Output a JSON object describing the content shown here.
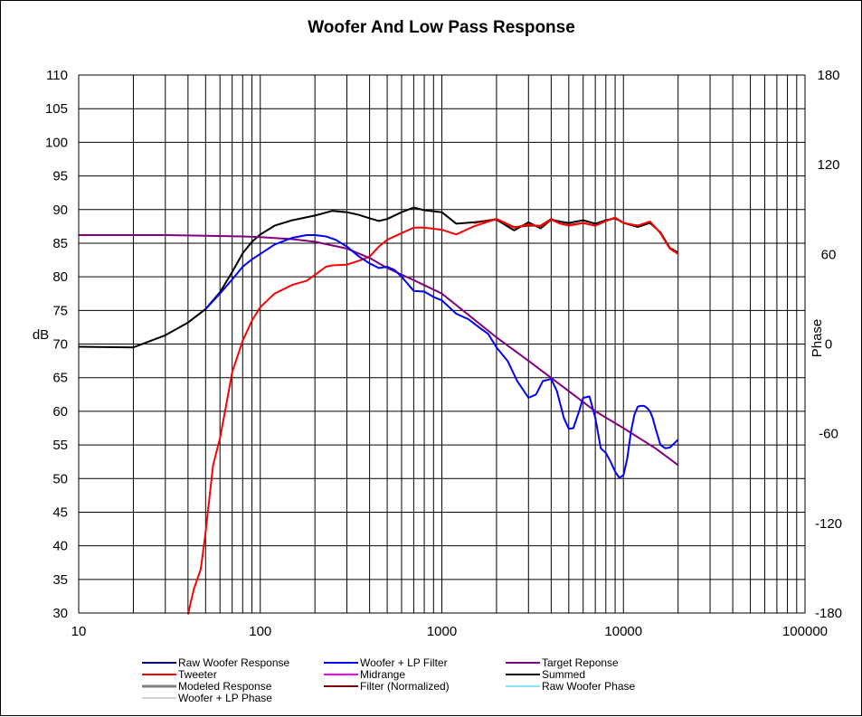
{
  "chart_data": {
    "type": "line",
    "title": "Woofer  And Low Pass Response",
    "xlabel": "",
    "ylabel": "dB",
    "y2label": "Phase",
    "xscale": "log",
    "xlim": [
      10,
      100000
    ],
    "ylim": [
      30,
      110
    ],
    "y2lim": [
      -180,
      180
    ],
    "grid": true,
    "legend_position": "bottom",
    "x_ticks": [
      "10",
      "100",
      "1000",
      "10000",
      "100000"
    ],
    "y_ticks": [
      "110",
      "105",
      "100",
      "95",
      "90",
      "85",
      "80",
      "75",
      "70",
      "65",
      "60",
      "55",
      "50",
      "45",
      "40",
      "35",
      "30"
    ],
    "y2_ticks": [
      "180",
      "120",
      "60",
      "0",
      "-60",
      "-120",
      "-180"
    ],
    "legend": [
      {
        "name": "Raw Woofer Response",
        "color": "#000080"
      },
      {
        "name": "Woofer + LP Filter",
        "color": "#0000ff"
      },
      {
        "name": "Target Reponse",
        "color": "#800080"
      },
      {
        "name": "Tweeter",
        "color": "#ff0000"
      },
      {
        "name": "Midrange",
        "color": "#ff00ff"
      },
      {
        "name": "Summed",
        "color": "#000000"
      },
      {
        "name": "Modeled Response",
        "color": "#808080"
      },
      {
        "name": "Filter (Normalized)",
        "color": "#800000"
      },
      {
        "name": "Raw Woofer Phase",
        "color": "#00ccff"
      },
      {
        "name": "Woofer + LP  Phase",
        "color": "#a0a0a0"
      }
    ],
    "series": [
      {
        "name": "Summed",
        "color": "#000000",
        "x": [
          10,
          20,
          30,
          40,
          50,
          60,
          70,
          80,
          90,
          100,
          120,
          150,
          200,
          250,
          300,
          350,
          400,
          450,
          500,
          600,
          700,
          800,
          1000,
          1200,
          1500,
          2000,
          2500,
          3000,
          3500,
          4000,
          4500,
          5000,
          6000,
          7000,
          8000,
          9000,
          10000,
          12000,
          14000,
          16000,
          18000,
          20000
        ],
        "y": [
          69.6,
          69.5,
          71.3,
          73.2,
          75.2,
          77.7,
          80.7,
          83.5,
          85.2,
          86.3,
          87.6,
          88.4,
          89.1,
          89.8,
          89.6,
          89.2,
          88.7,
          88.3,
          88.6,
          89.6,
          90.3,
          89.9,
          89.6,
          87.9,
          88.1,
          88.5,
          86.9,
          88.1,
          87.2,
          88.5,
          88.2,
          88.0,
          88.4,
          87.9,
          88.4,
          88.7,
          88.0,
          87.4,
          88.0,
          86.6,
          84.3,
          83.6
        ]
      },
      {
        "name": "Filter (Normalized)",
        "color": "#800000",
        "x": [
          1500,
          2000,
          2500,
          3000,
          3500,
          4000,
          4500,
          5000,
          6000,
          7000,
          8000,
          9000,
          10000,
          12000,
          14000,
          16000,
          18000,
          20000
        ],
        "y": [
          88.0,
          88.6,
          87.4,
          87.6,
          87.6,
          88.6,
          87.9,
          87.7,
          88.0,
          87.6,
          88.3,
          88.8,
          88.0,
          87.6,
          88.2,
          86.5,
          84.2,
          83.4
        ]
      },
      {
        "name": "Tweeter",
        "color": "#ff0000",
        "x": [
          40,
          43,
          47,
          50,
          55,
          60,
          65,
          70,
          80,
          90,
          100,
          120,
          150,
          180,
          200,
          230,
          250,
          300,
          350,
          400,
          450,
          500,
          600,
          700,
          800,
          1000,
          1200,
          1500,
          2000,
          2500,
          3000,
          3500,
          4000,
          4500,
          5000,
          6000,
          7000,
          8000,
          9000,
          10000,
          12000,
          14000,
          16000,
          18000,
          20000
        ],
        "y": [
          29.8,
          33.5,
          36.5,
          42.0,
          52.0,
          56.0,
          61.0,
          65.8,
          70.5,
          73.5,
          75.5,
          77.5,
          78.8,
          79.4,
          80.3,
          81.5,
          81.7,
          81.8,
          82.4,
          83.0,
          84.5,
          85.5,
          86.5,
          87.3,
          87.3,
          87.0,
          86.3,
          87.5,
          88.6,
          87.3,
          87.8,
          87.5,
          88.5,
          87.9,
          87.6,
          88.0,
          87.6,
          88.3,
          88.8,
          88.0,
          87.6,
          88.2,
          86.5,
          84.2,
          83.4
        ]
      },
      {
        "name": "Target Reponse",
        "color": "#800080",
        "x": [
          10,
          30,
          50,
          80,
          100,
          150,
          200,
          300,
          400,
          500,
          700,
          1000,
          2000,
          3000,
          5000,
          7000,
          10000,
          15000,
          20000
        ],
        "y": [
          86.2,
          86.2,
          86.1,
          86.0,
          85.9,
          85.6,
          85.2,
          84.2,
          82.8,
          81.3,
          79.5,
          77.5,
          71.0,
          67.5,
          63.0,
          60.0,
          57.5,
          54.5,
          52.0
        ]
      },
      {
        "name": "Woofer + LP Filter",
        "color": "#0000ff",
        "x": [
          50,
          60,
          70,
          80,
          90,
          100,
          120,
          150,
          180,
          200,
          230,
          260,
          300,
          350,
          400,
          450,
          500,
          550,
          600,
          700,
          800,
          900,
          1000,
          1200,
          1400,
          1600,
          1800,
          2000,
          2300,
          2600,
          3000,
          3300,
          3600,
          4000,
          4300,
          4700,
          5000,
          5300,
          5700,
          6000,
          6500,
          7000,
          7500,
          8000,
          8500,
          9000,
          9500,
          10000,
          10500,
          11000,
          11500,
          12000,
          12500,
          13000,
          13500,
          14000,
          14500,
          15000,
          16000,
          17000,
          18000,
          19000,
          20000
        ],
        "y": [
          75.2,
          77.5,
          79.6,
          81.5,
          82.6,
          83.4,
          84.8,
          85.8,
          86.2,
          86.2,
          86.0,
          85.5,
          84.5,
          83.0,
          82.0,
          81.3,
          81.5,
          81.0,
          80.0,
          77.9,
          77.8,
          77.0,
          76.5,
          74.5,
          73.7,
          72.5,
          71.5,
          69.5,
          67.5,
          64.5,
          62.0,
          62.5,
          64.5,
          64.8,
          63.0,
          59.0,
          57.4,
          57.5,
          60.0,
          62.0,
          62.2,
          59.0,
          54.5,
          53.8,
          52.5,
          51.0,
          50.1,
          50.5,
          53.0,
          57.0,
          59.5,
          60.7,
          60.8,
          60.8,
          60.5,
          60.0,
          59.0,
          57.5,
          55.0,
          54.5,
          54.6,
          55.2,
          55.8
        ]
      }
    ]
  }
}
